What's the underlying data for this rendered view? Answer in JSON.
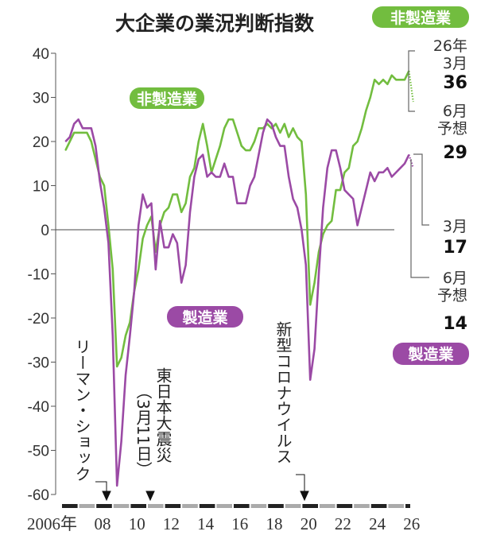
{
  "chart_data": {
    "type": "line",
    "title": "大企業の業況判断指数",
    "ylim": [
      -60,
      40
    ],
    "yticks": [
      "40",
      "30",
      "20",
      "10",
      "0",
      "-10",
      "-20",
      "-30",
      "-40",
      "-50",
      "-60"
    ],
    "xticks": [
      "2006年",
      "08",
      "10",
      "12",
      "14",
      "16",
      "18",
      "20",
      "22",
      "24",
      "26"
    ],
    "grid": "zero line only",
    "colors": {
      "non_manufacturing": "#72bd3f",
      "manufacturing": "#9b4aa5"
    },
    "series": [
      {
        "name": "非製造業",
        "start": "2006-03",
        "frequency": "quarterly",
        "values": [
          18,
          20,
          22,
          22,
          22,
          22,
          20,
          16,
          12,
          10,
          1,
          -9,
          -31,
          -29,
          -24,
          -21,
          -14,
          -9,
          -2,
          1,
          3,
          -5,
          1,
          4,
          5,
          8,
          8,
          4,
          6,
          12,
          14,
          20,
          24,
          19,
          13,
          16,
          19,
          23,
          25,
          25,
          22,
          19,
          18,
          18,
          20,
          23,
          23,
          24,
          23,
          24,
          22,
          24,
          21,
          23,
          21,
          20,
          8,
          -17,
          -12,
          -5,
          -1,
          1,
          2,
          9,
          9,
          13,
          14,
          19,
          20,
          23,
          27,
          30,
          34,
          33,
          34,
          33,
          35,
          34,
          34,
          34,
          36
        ],
        "forecast": {
          "date": "2026-06",
          "value": 29
        }
      },
      {
        "name": "製造業",
        "start": "2006-03",
        "frequency": "quarterly",
        "values": [
          20,
          21,
          24,
          25,
          23,
          23,
          23,
          19,
          11,
          5,
          -3,
          -24,
          -58,
          -48,
          -33,
          -24,
          -14,
          1,
          8,
          5,
          6,
          -9,
          2,
          -4,
          -4,
          -1,
          -3,
          -12,
          -8,
          4,
          12,
          16,
          17,
          12,
          13,
          12,
          12,
          15,
          12,
          12,
          6,
          6,
          6,
          10,
          12,
          17,
          22,
          25,
          24,
          21,
          19,
          19,
          12,
          7,
          5,
          0,
          -8,
          -34,
          -27,
          -10,
          5,
          14,
          18,
          18,
          14,
          9,
          8,
          7,
          1,
          5,
          9,
          13,
          11,
          13,
          13,
          14,
          12,
          13,
          14,
          15,
          17
        ],
        "forecast": {
          "date": "2026-06",
          "value": 14
        }
      }
    ],
    "annotations": [
      {
        "text": "リーマン・ショック",
        "date": "2008-09"
      },
      {
        "text": "東日本大震災",
        "sub": "（3月11日）",
        "date": "2011-03"
      },
      {
        "text": "新型コロナウイルス",
        "date": "2020-01"
      }
    ],
    "callouts": {
      "non_manufacturing": {
        "latest_label_year": "26年",
        "latest_label_month": "3月",
        "latest_value": "36",
        "forecast_label_month": "6月",
        "forecast_label_word": "予想",
        "forecast_value": "29"
      },
      "manufacturing": {
        "latest_label_month": "3月",
        "latest_value": "17",
        "forecast_label_month": "6月",
        "forecast_label_word": "予想",
        "forecast_value": "14"
      }
    },
    "legend_labels": {
      "non_manufacturing": "非製造業",
      "manufacturing": "製造業"
    }
  }
}
